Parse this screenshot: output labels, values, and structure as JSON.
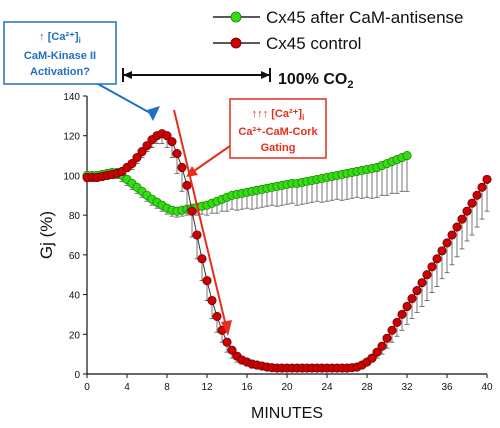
{
  "chart_data": {
    "type": "line",
    "xlabel": "MINUTES",
    "ylabel": "Gj (%)",
    "xlim": [
      0,
      40
    ],
    "ylim": [
      0,
      140
    ],
    "xticks": [
      "0",
      "4",
      "8",
      "12",
      "16",
      "20",
      "24",
      "28",
      "32",
      "36",
      "40"
    ],
    "yticks": [
      "0",
      "20",
      "40",
      "60",
      "80",
      "100",
      "120",
      "140"
    ],
    "grid": false,
    "legend_position": "top-right",
    "series": [
      {
        "name": "Cx45 after CaM-antisense",
        "color": "#33dd11",
        "error_bars": "lower",
        "x": [
          0,
          0.5,
          1,
          1.5,
          2,
          2.5,
          3,
          3.5,
          4,
          4.5,
          5,
          5.5,
          6,
          6.5,
          7,
          7.5,
          8,
          8.5,
          9,
          9.5,
          10,
          10.5,
          11,
          11.5,
          12,
          12.5,
          13,
          13.5,
          14,
          14.5,
          15,
          15.5,
          16,
          16.5,
          17,
          17.5,
          18,
          18.5,
          19,
          19.5,
          20,
          20.5,
          21,
          21.5,
          22,
          22.5,
          23,
          23.5,
          24,
          24.5,
          25,
          25.5,
          26,
          26.5,
          27,
          27.5,
          28,
          28.5,
          29,
          29.5,
          30,
          30.5,
          31,
          31.5,
          32
        ],
        "y": [
          100,
          100,
          100,
          100.5,
          101,
          101.5,
          101.5,
          100,
          98,
          96,
          94,
          92,
          90,
          88,
          86.5,
          85,
          83.5,
          82.5,
          82,
          82.5,
          83,
          83.5,
          84,
          84.5,
          85,
          86,
          87,
          88,
          89,
          90,
          90.5,
          91,
          91.5,
          92,
          92.5,
          93,
          93.5,
          94,
          94.5,
          95,
          95.5,
          96,
          96,
          96.5,
          97,
          97.5,
          98,
          98.5,
          99,
          99.5,
          100,
          100.5,
          101,
          101.5,
          102,
          102.5,
          103,
          103.5,
          104,
          105,
          106,
          107,
          108,
          109,
          110
        ],
        "error": [
          3,
          3,
          3,
          3,
          3,
          3,
          3,
          3,
          3,
          3,
          3,
          3,
          3,
          3,
          3,
          3,
          3,
          3,
          3,
          3,
          3,
          3,
          4,
          4,
          5,
          5,
          6,
          6,
          7,
          7,
          8,
          8,
          8,
          9,
          9,
          9,
          9,
          9,
          10,
          10,
          10,
          10,
          11,
          11,
          11,
          11,
          11,
          12,
          12,
          12,
          12,
          13,
          13,
          13,
          13,
          14,
          14,
          15,
          15,
          15,
          16,
          16,
          17,
          17,
          18
        ]
      },
      {
        "name": "Cx45 control",
        "color": "#cc0000",
        "error_bars": "lower",
        "x": [
          0,
          0.5,
          1,
          1.5,
          2,
          2.5,
          3,
          3.5,
          4,
          4.5,
          5,
          5.5,
          6,
          6.5,
          7,
          7.5,
          8,
          8.5,
          9,
          9.5,
          10,
          10.5,
          11,
          11.5,
          12,
          12.5,
          13,
          13.5,
          14,
          14.5,
          15,
          15.5,
          16,
          16.5,
          17,
          17.5,
          18,
          18.5,
          19,
          19.5,
          20,
          20.5,
          21,
          21.5,
          22,
          22.5,
          23,
          23.5,
          24,
          24.5,
          25,
          25.5,
          26,
          26.5,
          27,
          27.5,
          28,
          28.5,
          29,
          29.5,
          30,
          30.5,
          31,
          31.5,
          32,
          32.5,
          33,
          33.5,
          34,
          34.5,
          35,
          35.5,
          36,
          36.5,
          37,
          37.5,
          38,
          38.5,
          39,
          39.5,
          40
        ],
        "y": [
          99,
          99,
          99,
          99.5,
          100,
          100.5,
          101,
          102,
          104,
          106,
          109,
          112,
          115,
          118,
          120,
          121,
          120,
          117,
          111,
          104,
          95,
          82,
          70,
          58,
          47,
          37,
          29,
          22,
          16,
          12,
          9,
          7,
          6,
          5,
          4.5,
          4,
          3.5,
          3.2,
          3,
          3,
          3,
          3,
          3,
          3,
          3,
          3,
          3,
          3,
          3,
          3,
          3,
          3,
          3,
          3.2,
          3.5,
          4.5,
          6,
          8,
          11,
          14,
          18,
          22,
          26,
          30,
          34,
          38,
          42,
          46,
          50,
          54,
          58,
          62,
          66,
          70,
          74,
          78,
          82,
          86,
          90,
          94,
          98
        ],
        "error": [
          2,
          2,
          2,
          2,
          2,
          2,
          2,
          2,
          2,
          3,
          3,
          3,
          3,
          4,
          4,
          5,
          6,
          8,
          10,
          12,
          13,
          13,
          12,
          11,
          10,
          9,
          8,
          6,
          5,
          4,
          3,
          2,
          2,
          2,
          1,
          1,
          1,
          1,
          1,
          1,
          1,
          1,
          1,
          1,
          1,
          1,
          1,
          1,
          1,
          1,
          1,
          1,
          1,
          1,
          1,
          1,
          1,
          2,
          3,
          4,
          5,
          6,
          7,
          8,
          9,
          10,
          11,
          12,
          13,
          13,
          14,
          14,
          15,
          15,
          15,
          15,
          15,
          16,
          16,
          16,
          16
        ]
      }
    ],
    "annotations": {
      "co2_label": "100% CO",
      "co2_sub": "2",
      "co2_range": [
        3.6,
        18.3
      ],
      "blue_box": {
        "line1": "↑ [Ca²⁺]",
        "line1_sub": "i",
        "line2": "CaM-Kinase II",
        "line3": "Activation?",
        "color": "#1f6fc5"
      },
      "red_box": {
        "line1": "↑↑↑ [Ca²⁺]",
        "line1_sub": "i",
        "line2": "Ca²⁺-CaM-Cork",
        "line3": "Gating",
        "color": "#e62e1c"
      }
    }
  }
}
